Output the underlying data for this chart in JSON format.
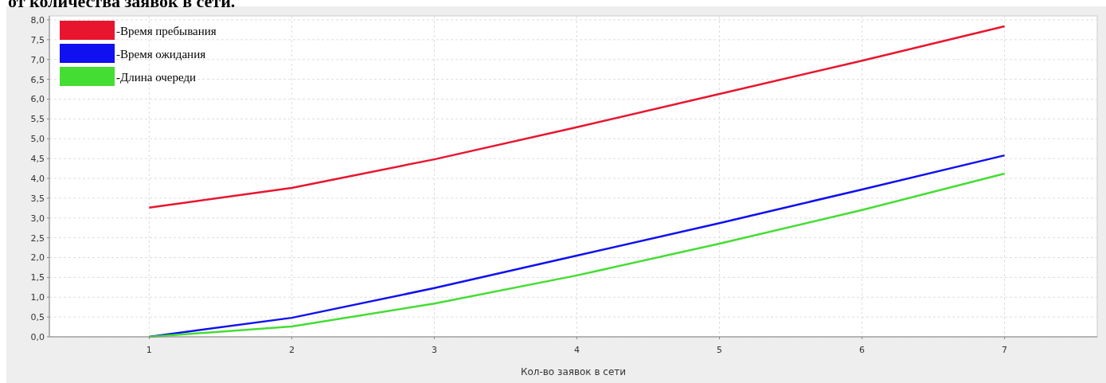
{
  "chart_data": {
    "type": "line",
    "title": "от количества заявок в сети.",
    "xlabel": "Кол-во заявок в сети",
    "x": [
      1,
      2,
      3,
      4,
      5,
      6,
      7
    ],
    "series": [
      {
        "name": "-Время пребывания",
        "color": "#e8152f",
        "values": [
          3.26,
          3.76,
          4.48,
          5.29,
          6.13,
          6.97,
          7.84
        ]
      },
      {
        "name": "-Время ожидания",
        "color": "#1010f0",
        "values": [
          0,
          0.48,
          1.23,
          2.05,
          2.87,
          3.72,
          4.58
        ]
      },
      {
        "name": "-Длина очереди",
        "color": "#44dd33",
        "values": [
          0,
          0.26,
          0.84,
          1.55,
          2.35,
          3.2,
          4.12
        ]
      }
    ],
    "xlim": [
      0.3,
      7.65
    ],
    "xticks": [
      1,
      2,
      3,
      4,
      5,
      6,
      7
    ],
    "ylim": [
      0,
      8.1
    ],
    "yticks": [
      {
        "value": 0,
        "label": "0,0"
      },
      {
        "value": 0.5,
        "label": "0,5"
      },
      {
        "value": 1,
        "label": "1,0"
      },
      {
        "value": 1.5,
        "label": "1,5"
      },
      {
        "value": 2,
        "label": "2,0"
      },
      {
        "value": 2.5,
        "label": "2,5"
      },
      {
        "value": 3,
        "label": "3,0"
      },
      {
        "value": 3.5,
        "label": "3,5"
      },
      {
        "value": 4,
        "label": "4,0"
      },
      {
        "value": 4.5,
        "label": "4,5"
      },
      {
        "value": 5,
        "label": "5,0"
      },
      {
        "value": 5.5,
        "label": "5,5"
      },
      {
        "value": 6,
        "label": "6,0"
      },
      {
        "value": 6.5,
        "label": "6,5"
      },
      {
        "value": 7,
        "label": "7,0"
      },
      {
        "value": 7.5,
        "label": "7,5"
      },
      {
        "value": 8,
        "label": "8,0"
      }
    ],
    "grid": true,
    "legend": "top left",
    "marker": "none",
    "line_style": "solid"
  }
}
